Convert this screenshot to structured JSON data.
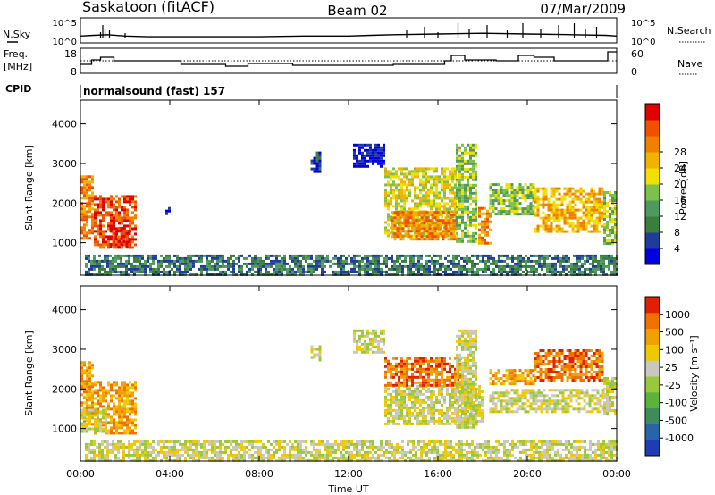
{
  "header": {
    "station": "Saskatoon (fitACF)",
    "beam": "Beam 02",
    "date": "07/Mar/2009"
  },
  "side_labels": {
    "nsky": "N.Sky",
    "nsearch": "N.Search",
    "freq_line1": "Freq.",
    "freq_line2": "[MHz]",
    "nave": "Nave",
    "cpid": "CPID",
    "cpid_value": "normalsound (fast) 157"
  },
  "noise_axis": {
    "left_ticks": [
      "10^5",
      "10^0"
    ],
    "right_ticks": [
      "10^5",
      "10^0"
    ]
  },
  "freq_axis": {
    "left_ticks": [
      "18",
      "8"
    ],
    "right_ticks": [
      "60",
      "0"
    ]
  },
  "time_axis": {
    "label": "Time UT",
    "ticks": [
      "00:00",
      "04:00",
      "08:00",
      "12:00",
      "16:00",
      "20:00",
      "00:00"
    ]
  },
  "range_axis": {
    "label": "Slant Range [km]",
    "ticks": [
      "1000",
      "2000",
      "3000",
      "4000"
    ]
  },
  "power_scale": {
    "label": "Power [dB]",
    "ticks": [
      "4",
      "8",
      "12",
      "16",
      "20",
      "24",
      "28"
    ],
    "colors": [
      "#0000e0",
      "#203c9a",
      "#3a7d3c",
      "#4e9a5e",
      "#7dc04a",
      "#f2e000",
      "#f0b400",
      "#f08000",
      "#f05000",
      "#e00000"
    ]
  },
  "velocity_scale": {
    "label": "Velocity [m s⁻¹]",
    "ticks": [
      "1000",
      "500",
      "100",
      "25",
      "-25",
      "-100",
      "-500",
      "-1000"
    ],
    "colors": [
      "#1e3cb4",
      "#2a64a8",
      "#3e8c5a",
      "#5ab43c",
      "#9ac83c",
      "#c8c8c0",
      "#f0c800",
      "#f0a000",
      "#f07000",
      "#e02000"
    ]
  },
  "chart_data": {
    "type": "heatmap",
    "x_unit": "hours UT",
    "xlim": [
      0,
      24
    ],
    "ylim": [
      180,
      4600
    ],
    "noise_search": [
      [
        0,
        0.5
      ],
      [
        0.6,
        0.55
      ],
      [
        1.2,
        0.6
      ],
      [
        2,
        0.5
      ],
      [
        3,
        0.45
      ],
      [
        5,
        0.45
      ],
      [
        8,
        0.45
      ],
      [
        10,
        0.5
      ],
      [
        12,
        0.5
      ],
      [
        13,
        0.55
      ],
      [
        14,
        0.6
      ],
      [
        16,
        0.65
      ],
      [
        18,
        0.7
      ],
      [
        20,
        0.65
      ],
      [
        22,
        0.6
      ],
      [
        23.5,
        0.55
      ],
      [
        24,
        0.5
      ]
    ],
    "noise_sky_bursts": [
      [
        0.9,
        0.3
      ],
      [
        1.0,
        0.7
      ],
      [
        1.1,
        0.5
      ],
      [
        1.3,
        0.4
      ],
      [
        2.0,
        0.25
      ],
      [
        14.6,
        0.4
      ],
      [
        15.4,
        0.6
      ],
      [
        16.0,
        0.3
      ],
      [
        16.9,
        0.8
      ],
      [
        17.4,
        0.5
      ],
      [
        18.2,
        0.7
      ],
      [
        19.1,
        0.4
      ],
      [
        19.8,
        0.8
      ],
      [
        20.6,
        0.5
      ],
      [
        21.4,
        0.7
      ],
      [
        22.1,
        0.8
      ],
      [
        22.6,
        0.5
      ],
      [
        23.1,
        0.6
      ]
    ],
    "frequency_steps": [
      [
        0,
        11
      ],
      [
        0.5,
        13.5
      ],
      [
        0.9,
        15
      ],
      [
        1.5,
        13
      ],
      [
        4.5,
        11
      ],
      [
        6.5,
        10
      ],
      [
        7.5,
        11.5
      ],
      [
        9.5,
        10.5
      ],
      [
        14,
        11
      ],
      [
        16.3,
        13
      ],
      [
        16.6,
        16
      ],
      [
        17.2,
        13.5
      ],
      [
        18.6,
        13
      ],
      [
        19.6,
        16
      ],
      [
        20.3,
        15
      ],
      [
        21.2,
        13
      ],
      [
        23.6,
        18
      ],
      [
        24,
        18
      ]
    ],
    "nave_reference_mhz": 13,
    "power_map": {
      "regions": [
        {
          "t0": 0.0,
          "t1": 0.5,
          "r0": 1100,
          "r1": 2700,
          "level": 7
        },
        {
          "t0": 0.6,
          "t1": 2.5,
          "r0": 900,
          "r1": 2200,
          "level": 8
        },
        {
          "t0": 1.3,
          "t1": 2.2,
          "r0": 900,
          "r1": 1400,
          "level": 9
        },
        {
          "t0": 3.8,
          "t1": 4.0,
          "r0": 1700,
          "r1": 1900,
          "level": 1
        },
        {
          "t0": 10.3,
          "t1": 10.7,
          "r0": 2800,
          "r1": 3300,
          "level": 1
        },
        {
          "t0": 12.2,
          "t1": 13.6,
          "r0": 2900,
          "r1": 3500,
          "level": 0
        },
        {
          "t0": 13.6,
          "t1": 16.8,
          "r0": 1200,
          "r1": 2900,
          "level": 5
        },
        {
          "t0": 13.9,
          "t1": 16.8,
          "r0": 1100,
          "r1": 1800,
          "level": 7
        },
        {
          "t0": 16.8,
          "t1": 17.7,
          "r0": 1000,
          "r1": 3500,
          "level": 4
        },
        {
          "t0": 17.8,
          "t1": 18.3,
          "r0": 1000,
          "r1": 1900,
          "level": 7
        },
        {
          "t0": 18.3,
          "t1": 20.3,
          "r0": 1700,
          "r1": 2500,
          "level": 4
        },
        {
          "t0": 20.3,
          "t1": 23.4,
          "r0": 1300,
          "r1": 2400,
          "level": 6
        },
        {
          "t0": 23.4,
          "t1": 24.0,
          "r0": 1000,
          "r1": 2300,
          "level": 4
        }
      ],
      "ground_band": {
        "t0": 0.2,
        "t1": 24.0,
        "r0": 180,
        "r1": 700,
        "level": 2
      }
    },
    "velocity_map": {
      "regions": [
        {
          "t0": 0.0,
          "t1": 0.5,
          "r0": 1100,
          "r1": 2700,
          "level": 7
        },
        {
          "t0": 0.6,
          "t1": 2.5,
          "r0": 900,
          "r1": 2200,
          "level": 7
        },
        {
          "t0": 0.0,
          "t1": 1.2,
          "r0": 900,
          "r1": 1500,
          "level": 5
        },
        {
          "t0": 10.3,
          "t1": 10.7,
          "r0": 2700,
          "r1": 3100,
          "level": 5
        },
        {
          "t0": 12.2,
          "t1": 13.6,
          "r0": 2900,
          "r1": 3500,
          "level": 5
        },
        {
          "t0": 13.6,
          "t1": 18.0,
          "r0": 1100,
          "r1": 2100,
          "level": 5
        },
        {
          "t0": 13.6,
          "t1": 17.0,
          "r0": 2100,
          "r1": 2800,
          "level": 8
        },
        {
          "t0": 16.8,
          "t1": 17.7,
          "r0": 1000,
          "r1": 3500,
          "level": 5
        },
        {
          "t0": 18.3,
          "t1": 20.3,
          "r0": 2100,
          "r1": 2500,
          "level": 7
        },
        {
          "t0": 18.3,
          "t1": 23.4,
          "r0": 1400,
          "r1": 2000,
          "level": 5
        },
        {
          "t0": 20.3,
          "t1": 23.4,
          "r0": 2200,
          "r1": 3000,
          "level": 8
        },
        {
          "t0": 23.4,
          "t1": 24.0,
          "r0": 1400,
          "r1": 2300,
          "level": 5
        }
      ],
      "ground_band": {
        "t0": 0.2,
        "t1": 24.0,
        "r0": 180,
        "r1": 700,
        "level": 5
      }
    }
  }
}
